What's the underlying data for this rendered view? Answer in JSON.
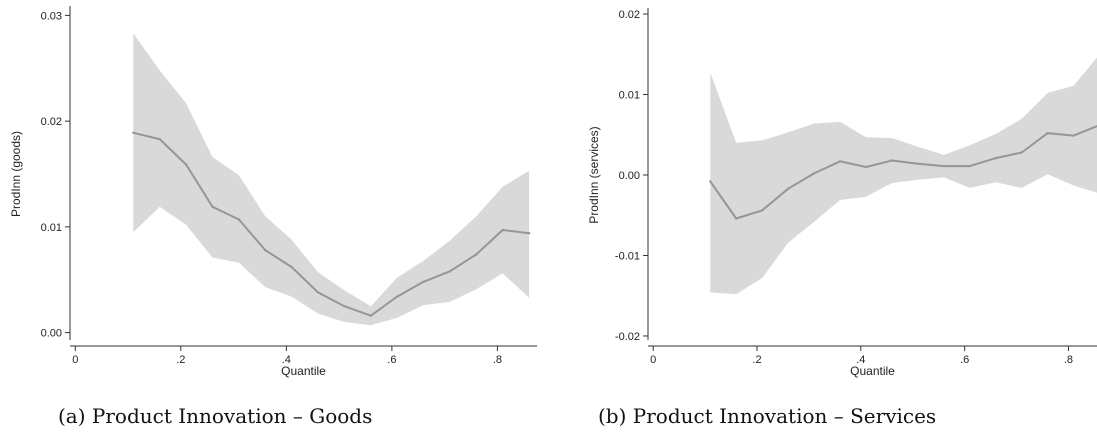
{
  "chart_data": [
    {
      "type": "line",
      "caption": "(a) Product Innovation – Goods",
      "xlabel": "Quantile",
      "ylabel": "ProdInn (goods)",
      "xlim": [
        -0.01,
        0.875
      ],
      "ylim": [
        -0.0007,
        0.0307
      ],
      "xticks": [
        0,
        0.2,
        0.4,
        0.6,
        0.8
      ],
      "xtick_labels": [
        "0",
        ".2",
        ".4",
        ".6",
        ".8"
      ],
      "yticks": [
        0,
        0.01,
        0.02,
        0.03
      ],
      "ytick_labels": [
        "0.00",
        "0.01",
        "0.02",
        "0.03"
      ],
      "x": [
        0.11,
        0.16,
        0.21,
        0.26,
        0.31,
        0.36,
        0.41,
        0.46,
        0.51,
        0.56,
        0.61,
        0.66,
        0.71,
        0.76,
        0.81,
        0.86
      ],
      "series": [
        {
          "values": [
            0.0189,
            0.0183,
            0.0159,
            0.0119,
            0.0107,
            0.0078,
            0.0062,
            0.0038,
            0.0025,
            0.0016,
            0.0034,
            0.0048,
            0.0058,
            0.0074,
            0.0097,
            0.0094
          ],
          "lower": [
            0.0095,
            0.0119,
            0.0102,
            0.0071,
            0.0066,
            0.0043,
            0.0034,
            0.0018,
            0.001,
            0.0007,
            0.0014,
            0.0026,
            0.0029,
            0.0041,
            0.0056,
            0.0033
          ],
          "upper": [
            0.0283,
            0.0248,
            0.0217,
            0.0166,
            0.0149,
            0.011,
            0.0088,
            0.0057,
            0.004,
            0.0025,
            0.0052,
            0.0068,
            0.0087,
            0.011,
            0.0138,
            0.0153
          ]
        }
      ],
      "colors": {
        "line": "#969696",
        "band": "#d9d9d9"
      }
    },
    {
      "type": "line",
      "caption": "(b) Product Innovation – Services",
      "xlabel": "Quantile",
      "ylabel": "ProdInn (services)",
      "xlim": [
        -0.01,
        0.855
      ],
      "ylim": [
        -0.0205,
        0.0205
      ],
      "xticks": [
        0,
        0.2,
        0.4,
        0.6,
        0.8
      ],
      "xtick_labels": [
        "0",
        ".2",
        ".4",
        ".6",
        ".8"
      ],
      "yticks": [
        -0.02,
        -0.01,
        0,
        0.01,
        0.02
      ],
      "ytick_labels": [
        "-0.02",
        "-0.01",
        "0.00",
        "0.01",
        "0.02"
      ],
      "x": [
        0.11,
        0.16,
        0.21,
        0.26,
        0.31,
        0.36,
        0.41,
        0.46,
        0.51,
        0.56,
        0.61,
        0.66,
        0.71,
        0.76,
        0.81,
        0.86
      ],
      "series": [
        {
          "values": [
            -0.0008,
            -0.0054,
            -0.0044,
            -0.0017,
            0.0002,
            0.0017,
            0.001,
            0.0018,
            0.0014,
            0.0011,
            0.0011,
            0.0021,
            0.0028,
            0.0052,
            0.0049,
            0.0062
          ],
          "lower": [
            -0.0146,
            -0.0148,
            -0.0128,
            -0.0084,
            -0.0058,
            -0.0031,
            -0.0027,
            -0.001,
            -0.0006,
            -0.0003,
            -0.0016,
            -0.0009,
            -0.0016,
            0.0001,
            -0.0013,
            -0.0023
          ],
          "upper": [
            0.0127,
            0.004,
            0.0043,
            0.0053,
            0.0064,
            0.0066,
            0.0047,
            0.0046,
            0.0035,
            0.0025,
            0.0037,
            0.0051,
            0.007,
            0.0102,
            0.0111,
            0.015
          ]
        }
      ],
      "colors": {
        "line": "#969696",
        "band": "#d9d9d9"
      }
    }
  ]
}
